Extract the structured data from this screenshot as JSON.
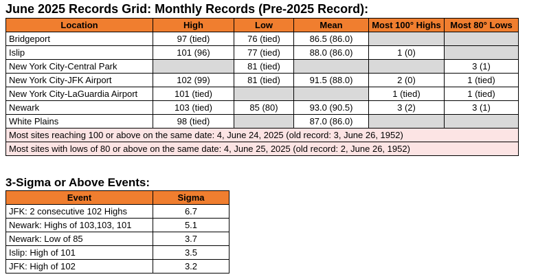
{
  "title": "June 2025 Records Grid: Monthly Records (Pre-2025 Record):",
  "records_table": {
    "headers": [
      "Location",
      "High",
      "Low",
      "Mean",
      "Most 100° Highs",
      "Most 80° Lows"
    ],
    "rows": [
      [
        "Bridgeport",
        "97 (tied)",
        "76 (tied)",
        "86.5 (86.0)",
        "",
        ""
      ],
      [
        "Islip",
        "101 (96)",
        "77 (tied)",
        "88.0 (86.0)",
        "1 (0)",
        ""
      ],
      [
        "New York City-Central Park",
        "",
        "81 (tied)",
        "",
        "",
        "3 (1)"
      ],
      [
        "New York City-JFK Airport",
        "102 (99)",
        "81 (tied)",
        "91.5 (88.0)",
        "2 (0)",
        "1 (tied)"
      ],
      [
        "New York City-LaGuardia Airport",
        "101 (tied)",
        "",
        "",
        "1 (tied)",
        "1 (tied)"
      ],
      [
        "Newark",
        "103 (tied)",
        "85 (80)",
        "93.0 (90.5)",
        "3 (2)",
        "3 (1)"
      ],
      [
        "White Plains",
        "98 (tied)",
        "",
        "87.0 (86.0)",
        "",
        ""
      ]
    ],
    "notes": [
      "Most sites reaching 100 or above on the same date: 4, June 24, 2025 (old record: 3, June 26, 1952)",
      "Most sites with lows of 80 or above on the same date: 4, June 25, 2025 (old record: 2, June 26, 1952)"
    ]
  },
  "events_title": "3-Sigma or Above Events:",
  "events_table": {
    "headers": [
      "Event",
      "Sigma"
    ],
    "rows": [
      [
        "JFK: 2 consecutive 102 Highs",
        "6.7"
      ],
      [
        "Newark: Highs of 103,103, 101",
        "5.1"
      ],
      [
        "Newark: Low of 85",
        "3.7"
      ],
      [
        "Islip: High of 101",
        "3.5"
      ],
      [
        "JFK: High of 102",
        "3.2"
      ]
    ]
  }
}
